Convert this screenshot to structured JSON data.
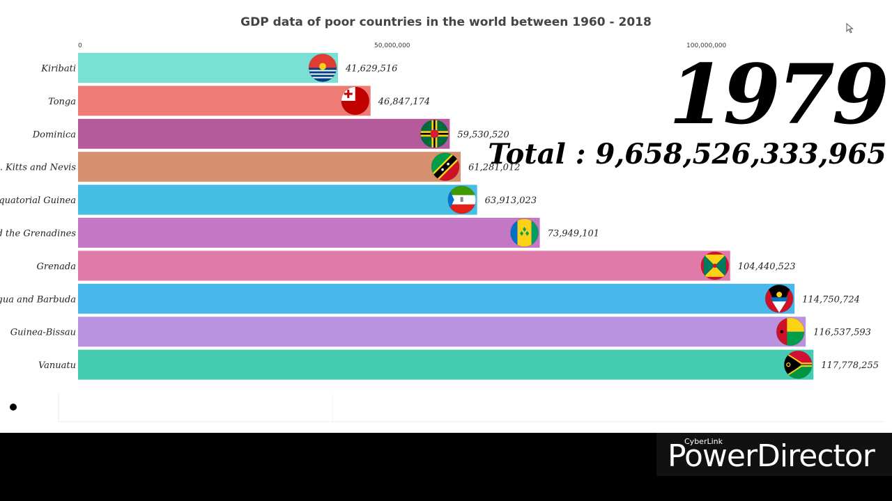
{
  "chart_data": {
    "type": "bar",
    "orientation": "horizontal",
    "title": "GDP data of poor countries in the world between 1960 - 2018",
    "categories": [
      "Kiribati",
      "Tonga",
      "Dominica",
      "St. Kitts and Nevis",
      "Equatorial Guinea",
      "nd the Grenadines",
      "Grenada",
      "gua and Barbuda",
      "Guinea-Bissau",
      "Vanuatu"
    ],
    "values": [
      41629516,
      46847174,
      59530520,
      61281012,
      63913023,
      73949101,
      104440523,
      114750724,
      116537593,
      117778255
    ],
    "value_labels": [
      "41,629,516",
      "46,847,174",
      "59,530,520",
      "61,281,012",
      "63,913,023",
      "73,949,101",
      "104,440,523",
      "114,750,724",
      "116,537,593",
      "117,778,255"
    ],
    "colors": [
      "#7ae0d3",
      "#ef7b76",
      "#b55b9b",
      "#d5906f",
      "#46bde3",
      "#c377c5",
      "#e07aa8",
      "#48b8ec",
      "#bb92e0",
      "#45cbb2"
    ],
    "flag_icons": [
      "kiribati-flag-icon",
      "tonga-flag-icon",
      "dominica-flag-icon",
      "st-kitts-and-nevis-flag-icon",
      "equatorial-guinea-flag-icon",
      "st-vincent-flag-icon",
      "grenada-flag-icon",
      "antigua-and-barbuda-flag-icon",
      "guinea-bissau-flag-icon",
      "vanuatu-flag-icon"
    ],
    "x_ticks": [
      0,
      50000000,
      100000000
    ],
    "x_tick_labels": [
      "0",
      "50,000,000",
      "100,000,000"
    ],
    "xlim": [
      0,
      130000000
    ],
    "xaxis_position": "top",
    "grid": false,
    "legend": "none"
  },
  "overlay": {
    "year": "1979",
    "total": "Total : 9,658,526,333,965"
  },
  "watermark": {
    "small": "CyberLink",
    "big": "PowerDirector"
  }
}
